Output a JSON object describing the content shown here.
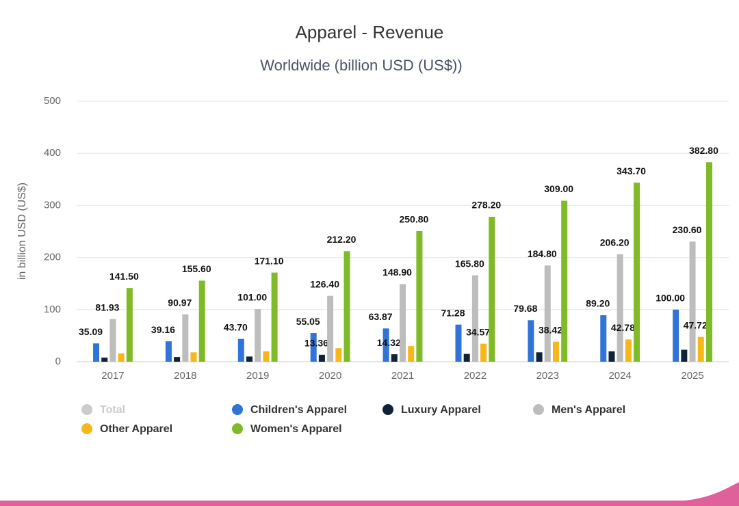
{
  "chart_data": {
    "type": "bar",
    "title": "Apparel - Revenue",
    "subtitle": "Worldwide (billion USD (US$))",
    "y_label": "in billion USD (US$)",
    "categories": [
      "2017",
      "2018",
      "2019",
      "2020",
      "2021",
      "2022",
      "2023",
      "2024",
      "2025"
    ],
    "ylim": [
      0,
      500
    ],
    "yticks": [
      0,
      100,
      200,
      300,
      400,
      500
    ],
    "grid": true,
    "series": [
      {
        "name": "Total",
        "color": "#cccccc",
        "visible": false,
        "values": [
          null,
          null,
          null,
          null,
          null,
          null,
          null,
          null,
          null
        ]
      },
      {
        "name": "Children's Apparel",
        "color": "#2f74d6",
        "values": [
          35.09,
          39.16,
          43.7,
          55.05,
          63.87,
          71.28,
          79.68,
          89.2,
          100.0
        ],
        "value_labels": [
          "35.09",
          "39.16",
          "43.70",
          "55.05",
          "63.87",
          "71.28",
          "79.68",
          "89.20",
          "100.00"
        ]
      },
      {
        "name": "Luxury Apparel",
        "color": "#0f2237",
        "values": [
          8,
          9,
          10,
          13.36,
          14.32,
          15,
          18,
          20,
          23
        ],
        "value_labels": [
          null,
          null,
          null,
          "13.36",
          "14.32",
          null,
          null,
          null,
          null
        ]
      },
      {
        "name": "Men's Apparel",
        "color": "#bdbdbd",
        "values": [
          81.93,
          90.97,
          101.0,
          126.4,
          148.9,
          165.8,
          184.8,
          206.2,
          230.6
        ],
        "value_labels": [
          "81.93",
          "90.97",
          "101.00",
          "126.40",
          "148.90",
          "165.80",
          "184.80",
          "206.20",
          "230.60"
        ]
      },
      {
        "name": "Other Apparel",
        "color": "#f7b718",
        "values": [
          16,
          18,
          20,
          26,
          30,
          34.57,
          38.42,
          42.78,
          47.72
        ],
        "value_labels": [
          null,
          null,
          null,
          null,
          null,
          "34.57",
          "38.42",
          "42.78",
          "47.72"
        ]
      },
      {
        "name": "Women's Apparel",
        "color": "#7fba27",
        "values": [
          141.5,
          155.6,
          171.1,
          212.2,
          250.8,
          278.2,
          309.0,
          343.7,
          382.8
        ],
        "value_labels": [
          "141.50",
          "155.60",
          "171.10",
          "212.20",
          "250.80",
          "278.20",
          "309.00",
          "343.70",
          "382.80"
        ]
      }
    ]
  }
}
